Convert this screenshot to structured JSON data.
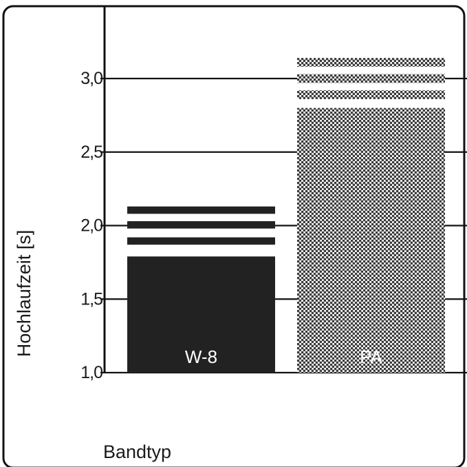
{
  "chart_data": {
    "type": "bar",
    "title": "",
    "xlabel": "Bandtyp",
    "ylabel": "Hochlaufzeit [s]",
    "ylim": [
      1.0,
      3.0
    ],
    "yticks": [
      1.0,
      1.5,
      2.0,
      2.5,
      3.0
    ],
    "ytick_labels": [
      "1,0",
      "1,5",
      "2,0",
      "2,5",
      "3,0"
    ],
    "grid": true,
    "categories": [
      "W-8",
      "PA"
    ],
    "series": [
      {
        "values": [
          1.79,
          2.8
        ],
        "range_bands": [
          [
            [
              1.87,
              1.92
            ],
            [
              1.98,
              2.03
            ],
            [
              2.08,
              2.13
            ]
          ],
          [
            [
              2.86,
              2.92
            ],
            [
              2.97,
              3.03
            ],
            [
              3.08,
              3.14
            ]
          ]
        ]
      }
    ],
    "colors": {
      "W-8": "#222222",
      "PA": "#3a3a3a",
      "grid": "#111111",
      "frame": "#111111"
    },
    "fill_styles": {
      "W-8": "solid",
      "PA": "dotted-raster"
    }
  }
}
